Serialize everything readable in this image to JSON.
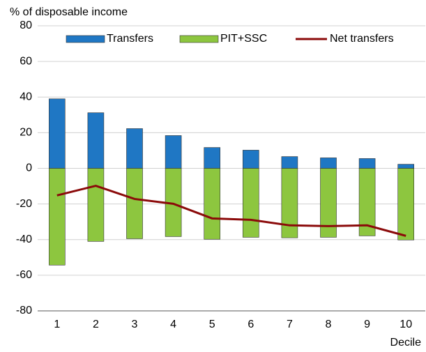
{
  "chart_data": {
    "type": "bar",
    "y_axis_label": "% of disposable income",
    "x_axis_label": "Decile",
    "categories": [
      "1",
      "2",
      "3",
      "4",
      "5",
      "6",
      "7",
      "8",
      "9",
      "10"
    ],
    "series": [
      {
        "name": "Transfers",
        "type": "bar",
        "color": "#1f77c4",
        "values": [
          39,
          31.2,
          22.3,
          18.4,
          11.7,
          10.2,
          6.6,
          5.9,
          5.5,
          2.3
        ]
      },
      {
        "name": "PIT+SSC",
        "type": "bar",
        "color": "#8dc63f",
        "values": [
          -54.3,
          -41,
          -39.5,
          -38.3,
          -39.8,
          -38.7,
          -39,
          -38.7,
          -37.9,
          -40.2
        ]
      },
      {
        "name": "Net transfers",
        "type": "line",
        "color": "#8b0a0a",
        "values": [
          -15.2,
          -9.8,
          -17.2,
          -19.9,
          -28.1,
          -28.9,
          -32,
          -32.4,
          -32,
          -37.9
        ]
      }
    ],
    "ylim": [
      -80,
      80
    ],
    "yticks": [
      -80,
      -60,
      -40,
      -20,
      0,
      20,
      40,
      60,
      80
    ],
    "grid": true,
    "legend": "top"
  }
}
